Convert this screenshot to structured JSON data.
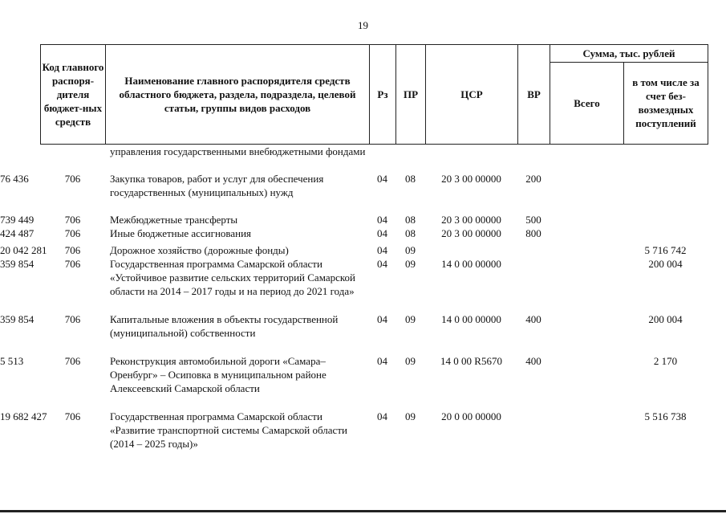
{
  "page_number": "19",
  "header": {
    "code": "Код главного распоря-дителя бюджет-ных средств",
    "name": "Наименование главного распорядителя средств областного бюджета, раздела, подраздела, целевой статьи, группы видов расходов",
    "rz": "Рз",
    "pr": "ПР",
    "csr": "ЦСР",
    "vr": "ВР",
    "sum": "Сумма, тыс. рублей",
    "total": "Всего",
    "free": "в том числе за счет без-возмездных поступлений"
  },
  "rows": [
    {
      "code": "",
      "name": "управления государственными внебюджетными фондами",
      "rz": "",
      "pr": "",
      "csr": "",
      "vr": "",
      "total": "",
      "free": ""
    },
    {
      "code": "706",
      "name": "Закупка товаров, работ и услуг для обеспечения государственных (муниципальных) нужд",
      "rz": "04",
      "pr": "08",
      "csr": "20 3 00 00000",
      "vr": "200",
      "total": "76 436",
      "free": ""
    },
    {
      "code": "706",
      "name": "Межбюджетные трансферты",
      "rz": "04",
      "pr": "08",
      "csr": "20 3 00 00000",
      "vr": "500",
      "total": "739 449",
      "free": ""
    },
    {
      "code": "706",
      "name": "Иные бюджетные ассигнования",
      "rz": "04",
      "pr": "08",
      "csr": "20 3 00 00000",
      "vr": "800",
      "total": "424 487",
      "free": ""
    },
    {
      "code": "706",
      "name": "Дорожное хозяйство (дорожные фонды)",
      "rz": "04",
      "pr": "09",
      "csr": "",
      "vr": "",
      "total": "20 042 281",
      "free": "5 716 742"
    },
    {
      "code": "706",
      "name": "Государственная программа Самарской области «Устойчивое развитие сельских территорий Самарской области на 2014 – 2017 годы и на период до 2021 года»",
      "rz": "04",
      "pr": "09",
      "csr": "14 0 00 00000",
      "vr": "",
      "total": "359 854",
      "free": "200 004"
    },
    {
      "code": "706",
      "name": "Капитальные вложения в объекты государственной (муниципальной) собственности",
      "rz": "04",
      "pr": "09",
      "csr": "14 0 00 00000",
      "vr": "400",
      "total": "359 854",
      "free": "200 004"
    },
    {
      "code": "706",
      "name": "Реконструкция автомобильной дороги «Самара–Оренбург» – Осиповка в муниципальном районе Алексеевский Самарской области",
      "rz": "04",
      "pr": "09",
      "csr": "14 0 00 R5670",
      "vr": "400",
      "total": "5 513",
      "free": "2 170"
    },
    {
      "code": "706",
      "name": "Государственная программа Самарской области «Развитие транспортной системы Самарской области (2014 – 2025 годы)»",
      "rz": "04",
      "pr": "09",
      "csr": "20 0 00 00000",
      "vr": "",
      "total": "19 682 427",
      "free": "5 516 738"
    }
  ]
}
